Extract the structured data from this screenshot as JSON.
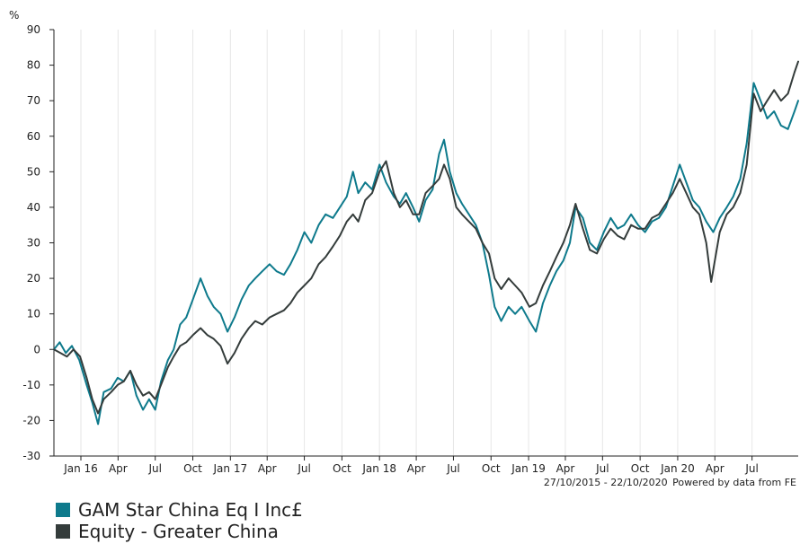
{
  "chart_data": {
    "type": "line",
    "y_unit": "%",
    "ylim": [
      -30,
      90
    ],
    "y_ticks": [
      -30,
      -20,
      -10,
      0,
      10,
      20,
      30,
      40,
      50,
      60,
      70,
      80,
      90
    ],
    "x_range": [
      "2015-10-27",
      "2020-10-22"
    ],
    "x_ticks": [
      {
        "label": "Jan 16",
        "date": "2016-01-01"
      },
      {
        "label": "Apr",
        "date": "2016-04-01"
      },
      {
        "label": "Jul",
        "date": "2016-07-01"
      },
      {
        "label": "Oct",
        "date": "2016-10-01"
      },
      {
        "label": "Jan 17",
        "date": "2017-01-01"
      },
      {
        "label": "Apr",
        "date": "2017-04-01"
      },
      {
        "label": "Jul",
        "date": "2017-07-01"
      },
      {
        "label": "Oct",
        "date": "2017-10-01"
      },
      {
        "label": "Jan 18",
        "date": "2018-01-01"
      },
      {
        "label": "Apr",
        "date": "2018-04-01"
      },
      {
        "label": "Jul",
        "date": "2018-07-01"
      },
      {
        "label": "Oct",
        "date": "2018-10-01"
      },
      {
        "label": "Jan 19",
        "date": "2019-01-01"
      },
      {
        "label": "Apr",
        "date": "2019-04-01"
      },
      {
        "label": "Jul",
        "date": "2019-07-01"
      },
      {
        "label": "Oct",
        "date": "2019-10-01"
      },
      {
        "label": "Jan 20",
        "date": "2020-01-01"
      },
      {
        "label": "Apr",
        "date": "2020-04-01"
      },
      {
        "label": "Jul",
        "date": "2020-07-01"
      }
    ],
    "grid": "vertical at x ticks",
    "legend_position": "bottom-left",
    "series": [
      {
        "name": "GAM Star China Eq I Inc£",
        "color": "#0e7a8c",
        "points": [
          [
            "2015-10-27",
            0
          ],
          [
            "2015-11-10",
            2
          ],
          [
            "2015-11-25",
            -1
          ],
          [
            "2015-12-10",
            1
          ],
          [
            "2015-12-28",
            -3
          ],
          [
            "2016-01-15",
            -10
          ],
          [
            "2016-01-29",
            -15
          ],
          [
            "2016-02-12",
            -21
          ],
          [
            "2016-02-26",
            -12
          ],
          [
            "2016-03-15",
            -11
          ],
          [
            "2016-03-31",
            -8
          ],
          [
            "2016-04-15",
            -9
          ],
          [
            "2016-05-01",
            -6
          ],
          [
            "2016-05-16",
            -13
          ],
          [
            "2016-06-01",
            -17
          ],
          [
            "2016-06-16",
            -14
          ],
          [
            "2016-07-01",
            -17
          ],
          [
            "2016-07-15",
            -9
          ],
          [
            "2016-08-01",
            -3
          ],
          [
            "2016-08-15",
            0
          ],
          [
            "2016-08-31",
            7
          ],
          [
            "2016-09-15",
            9
          ],
          [
            "2016-10-01",
            14
          ],
          [
            "2016-10-20",
            20
          ],
          [
            "2016-11-06",
            15
          ],
          [
            "2016-11-21",
            12
          ],
          [
            "2016-12-08",
            10
          ],
          [
            "2016-12-25",
            5
          ],
          [
            "2017-01-11",
            9
          ],
          [
            "2017-01-28",
            14
          ],
          [
            "2017-02-15",
            18
          ],
          [
            "2017-03-03",
            20
          ],
          [
            "2017-03-20",
            22
          ],
          [
            "2017-04-07",
            24
          ],
          [
            "2017-04-24",
            22
          ],
          [
            "2017-05-12",
            21
          ],
          [
            "2017-05-28",
            24
          ],
          [
            "2017-06-14",
            28
          ],
          [
            "2017-07-01",
            33
          ],
          [
            "2017-07-18",
            30
          ],
          [
            "2017-08-05",
            35
          ],
          [
            "2017-08-22",
            38
          ],
          [
            "2017-09-09",
            37
          ],
          [
            "2017-09-26",
            40
          ],
          [
            "2017-10-13",
            43
          ],
          [
            "2017-10-28",
            50
          ],
          [
            "2017-11-10",
            44
          ],
          [
            "2017-11-27",
            47
          ],
          [
            "2017-12-14",
            45
          ],
          [
            "2018-01-01",
            52
          ],
          [
            "2018-01-17",
            47
          ],
          [
            "2018-02-05",
            43
          ],
          [
            "2018-02-20",
            41
          ],
          [
            "2018-03-07",
            44
          ],
          [
            "2018-03-24",
            40
          ],
          [
            "2018-04-08",
            36
          ],
          [
            "2018-04-24",
            42
          ],
          [
            "2018-05-11",
            45
          ],
          [
            "2018-05-27",
            55
          ],
          [
            "2018-06-08",
            59
          ],
          [
            "2018-06-22",
            50
          ],
          [
            "2018-07-08",
            44
          ],
          [
            "2018-07-22",
            41
          ],
          [
            "2018-08-08",
            38
          ],
          [
            "2018-08-25",
            35
          ],
          [
            "2018-09-10",
            30
          ],
          [
            "2018-09-26",
            21
          ],
          [
            "2018-10-10",
            12
          ],
          [
            "2018-10-26",
            8
          ],
          [
            "2018-11-13",
            12
          ],
          [
            "2018-11-29",
            10
          ],
          [
            "2018-12-15",
            12
          ],
          [
            "2019-01-03",
            8
          ],
          [
            "2019-01-19",
            5
          ],
          [
            "2019-02-05",
            13
          ],
          [
            "2019-02-22",
            18
          ],
          [
            "2019-03-10",
            22
          ],
          [
            "2019-03-27",
            25
          ],
          [
            "2019-04-12",
            30
          ],
          [
            "2019-04-26",
            40
          ],
          [
            "2019-05-14",
            37
          ],
          [
            "2019-05-31",
            30
          ],
          [
            "2019-06-17",
            28
          ],
          [
            "2019-07-04",
            33
          ],
          [
            "2019-07-21",
            37
          ],
          [
            "2019-08-07",
            34
          ],
          [
            "2019-08-23",
            35
          ],
          [
            "2019-09-09",
            38
          ],
          [
            "2019-09-26",
            35
          ],
          [
            "2019-10-13",
            33
          ],
          [
            "2019-10-30",
            36
          ],
          [
            "2019-11-16",
            37
          ],
          [
            "2019-12-03",
            40
          ],
          [
            "2019-12-20",
            46
          ],
          [
            "2020-01-06",
            52
          ],
          [
            "2020-01-22",
            47
          ],
          [
            "2020-02-07",
            42
          ],
          [
            "2020-02-23",
            40
          ],
          [
            "2020-03-11",
            36
          ],
          [
            "2020-03-28",
            33
          ],
          [
            "2020-04-13",
            37
          ],
          [
            "2020-04-30",
            40
          ],
          [
            "2020-05-16",
            43
          ],
          [
            "2020-06-02",
            48
          ],
          [
            "2020-06-18",
            58
          ],
          [
            "2020-07-05",
            75
          ],
          [
            "2020-07-22",
            70
          ],
          [
            "2020-08-07",
            65
          ],
          [
            "2020-08-24",
            67
          ],
          [
            "2020-09-10",
            63
          ],
          [
            "2020-09-27",
            62
          ],
          [
            "2020-10-13",
            67
          ],
          [
            "2020-10-22",
            70
          ]
        ]
      },
      {
        "name": "Equity - Greater China",
        "color": "#343c3b",
        "points": [
          [
            "2015-10-27",
            0
          ],
          [
            "2015-11-12",
            -1
          ],
          [
            "2015-11-28",
            -2
          ],
          [
            "2015-12-14",
            0
          ],
          [
            "2015-12-30",
            -2
          ],
          [
            "2016-01-15",
            -8
          ],
          [
            "2016-01-29",
            -14
          ],
          [
            "2016-02-12",
            -18
          ],
          [
            "2016-02-26",
            -14
          ],
          [
            "2016-03-15",
            -12
          ],
          [
            "2016-03-31",
            -10
          ],
          [
            "2016-04-15",
            -9
          ],
          [
            "2016-05-01",
            -6
          ],
          [
            "2016-05-16",
            -10
          ],
          [
            "2016-06-01",
            -13
          ],
          [
            "2016-06-16",
            -12
          ],
          [
            "2016-07-01",
            -14
          ],
          [
            "2016-07-15",
            -10
          ],
          [
            "2016-08-01",
            -5
          ],
          [
            "2016-08-15",
            -2
          ],
          [
            "2016-08-31",
            1
          ],
          [
            "2016-09-15",
            2
          ],
          [
            "2016-10-01",
            4
          ],
          [
            "2016-10-20",
            6
          ],
          [
            "2016-11-06",
            4
          ],
          [
            "2016-11-21",
            3
          ],
          [
            "2016-12-08",
            1
          ],
          [
            "2016-12-25",
            -4
          ],
          [
            "2017-01-11",
            -1
          ],
          [
            "2017-01-28",
            3
          ],
          [
            "2017-02-15",
            6
          ],
          [
            "2017-03-03",
            8
          ],
          [
            "2017-03-20",
            7
          ],
          [
            "2017-04-07",
            9
          ],
          [
            "2017-04-24",
            10
          ],
          [
            "2017-05-12",
            11
          ],
          [
            "2017-05-28",
            13
          ],
          [
            "2017-06-14",
            16
          ],
          [
            "2017-07-01",
            18
          ],
          [
            "2017-07-18",
            20
          ],
          [
            "2017-08-05",
            24
          ],
          [
            "2017-08-22",
            26
          ],
          [
            "2017-09-09",
            29
          ],
          [
            "2017-09-26",
            32
          ],
          [
            "2017-10-13",
            36
          ],
          [
            "2017-10-28",
            38
          ],
          [
            "2017-11-10",
            36
          ],
          [
            "2017-11-27",
            42
          ],
          [
            "2017-12-14",
            44
          ],
          [
            "2018-01-01",
            50
          ],
          [
            "2018-01-17",
            53
          ],
          [
            "2018-02-05",
            44
          ],
          [
            "2018-02-20",
            40
          ],
          [
            "2018-03-07",
            42
          ],
          [
            "2018-03-24",
            38
          ],
          [
            "2018-04-08",
            38
          ],
          [
            "2018-04-24",
            44
          ],
          [
            "2018-05-11",
            46
          ],
          [
            "2018-05-27",
            48
          ],
          [
            "2018-06-08",
            52
          ],
          [
            "2018-06-22",
            48
          ],
          [
            "2018-07-08",
            40
          ],
          [
            "2018-07-22",
            38
          ],
          [
            "2018-08-08",
            36
          ],
          [
            "2018-08-25",
            34
          ],
          [
            "2018-09-10",
            30
          ],
          [
            "2018-09-26",
            27
          ],
          [
            "2018-10-10",
            20
          ],
          [
            "2018-10-26",
            17
          ],
          [
            "2018-11-13",
            20
          ],
          [
            "2018-11-29",
            18
          ],
          [
            "2018-12-15",
            16
          ],
          [
            "2019-01-03",
            12
          ],
          [
            "2019-01-19",
            13
          ],
          [
            "2019-02-05",
            18
          ],
          [
            "2019-02-22",
            22
          ],
          [
            "2019-03-10",
            26
          ],
          [
            "2019-03-27",
            30
          ],
          [
            "2019-04-12",
            35
          ],
          [
            "2019-04-26",
            41
          ],
          [
            "2019-05-14",
            34
          ],
          [
            "2019-05-31",
            28
          ],
          [
            "2019-06-17",
            27
          ],
          [
            "2019-07-04",
            31
          ],
          [
            "2019-07-21",
            34
          ],
          [
            "2019-08-07",
            32
          ],
          [
            "2019-08-23",
            31
          ],
          [
            "2019-09-09",
            35
          ],
          [
            "2019-09-26",
            34
          ],
          [
            "2019-10-13",
            34
          ],
          [
            "2019-10-30",
            37
          ],
          [
            "2019-11-16",
            38
          ],
          [
            "2019-12-03",
            41
          ],
          [
            "2019-12-20",
            44
          ],
          [
            "2020-01-06",
            48
          ],
          [
            "2020-01-22",
            44
          ],
          [
            "2020-02-07",
            40
          ],
          [
            "2020-02-23",
            38
          ],
          [
            "2020-03-11",
            30
          ],
          [
            "2020-03-23",
            19
          ],
          [
            "2020-04-13",
            33
          ],
          [
            "2020-04-30",
            38
          ],
          [
            "2020-05-16",
            40
          ],
          [
            "2020-06-02",
            44
          ],
          [
            "2020-06-18",
            52
          ],
          [
            "2020-07-05",
            72
          ],
          [
            "2020-07-22",
            67
          ],
          [
            "2020-08-07",
            70
          ],
          [
            "2020-08-24",
            73
          ],
          [
            "2020-09-10",
            70
          ],
          [
            "2020-09-27",
            72
          ],
          [
            "2020-10-13",
            78
          ],
          [
            "2020-10-22",
            81
          ]
        ]
      }
    ]
  },
  "credit": {
    "date_range": "27/10/2015 - 22/10/2020",
    "source": "Powered by data from FE"
  }
}
